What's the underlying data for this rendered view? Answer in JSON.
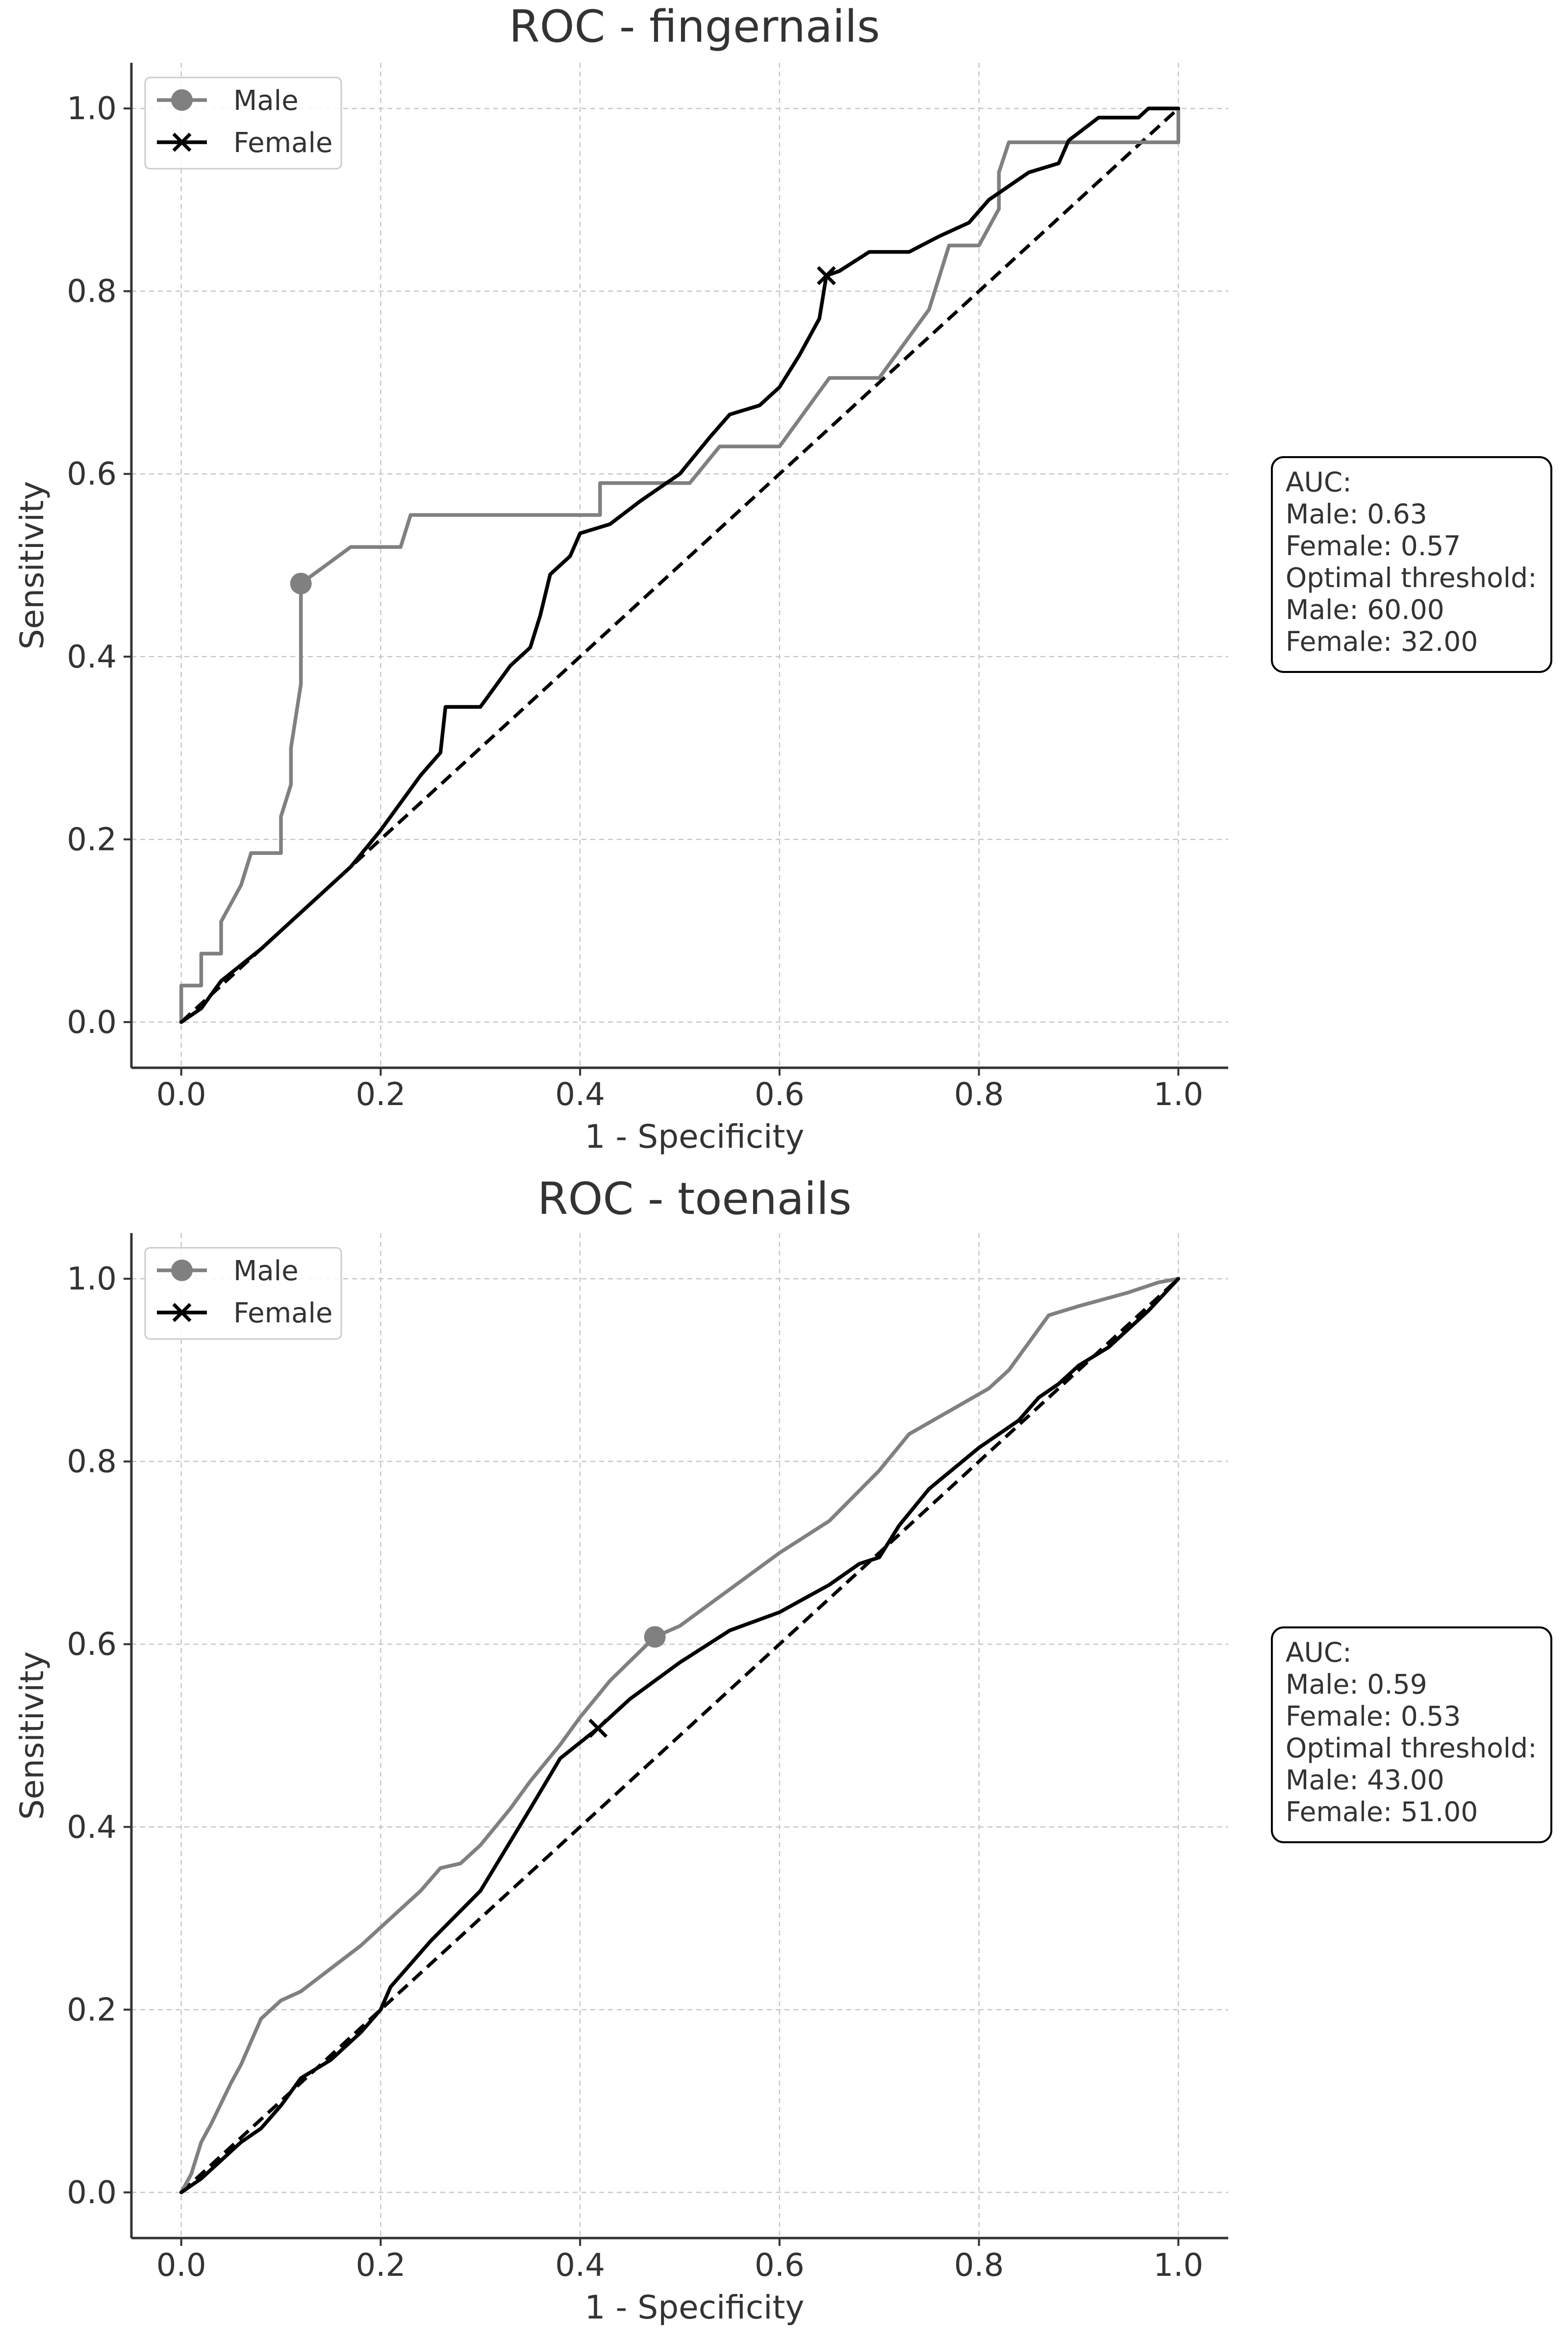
{
  "chart_data": [
    {
      "type": "line",
      "title": "ROC - fingernails",
      "xlabel": "1 - Specificity",
      "ylabel": "Sensitivity",
      "xlim": [
        -0.05,
        1.05
      ],
      "ylim": [
        -0.05,
        1.05
      ],
      "xticks": [
        "0.0",
        "0.2",
        "0.4",
        "0.6",
        "0.8",
        "1.0"
      ],
      "yticks": [
        "0.0",
        "0.2",
        "0.4",
        "0.6",
        "0.8",
        "1.0"
      ],
      "grid": true,
      "legend": {
        "position": "top-left",
        "entries": [
          "Male",
          "Female"
        ]
      },
      "colors": {
        "male": "#808080",
        "female": "#000000",
        "diagonal": "#000000"
      },
      "series": [
        {
          "name": "Male",
          "marker": "circle",
          "optimal_point": [
            0.12,
            0.48
          ],
          "x": [
            0,
            0,
            0.02,
            0.02,
            0.04,
            0.04,
            0.06,
            0.07,
            0.1,
            0.1,
            0.11,
            0.11,
            0.12,
            0.12,
            0.17,
            0.22,
            0.23,
            0.42,
            0.42,
            0.51,
            0.54,
            0.6,
            0.65,
            0.7,
            0.75,
            0.77,
            0.8,
            0.82,
            0.82,
            0.83,
            1.0,
            1.0
          ],
          "y": [
            0,
            0.04,
            0.04,
            0.075,
            0.075,
            0.11,
            0.15,
            0.185,
            0.185,
            0.225,
            0.26,
            0.3,
            0.37,
            0.48,
            0.52,
            0.52,
            0.555,
            0.555,
            0.59,
            0.59,
            0.63,
            0.63,
            0.705,
            0.705,
            0.78,
            0.85,
            0.85,
            0.89,
            0.93,
            0.963,
            0.963,
            1.0
          ]
        },
        {
          "name": "Female",
          "marker": "x",
          "optimal_point": [
            0.647,
            0.817
          ],
          "x": [
            0,
            0.02,
            0.04,
            0.08,
            0.1,
            0.13,
            0.15,
            0.17,
            0.2,
            0.24,
            0.26,
            0.265,
            0.3,
            0.33,
            0.35,
            0.36,
            0.37,
            0.39,
            0.4,
            0.43,
            0.46,
            0.5,
            0.53,
            0.55,
            0.58,
            0.6,
            0.62,
            0.64,
            0.647,
            0.66,
            0.69,
            0.73,
            0.76,
            0.79,
            0.81,
            0.85,
            0.88,
            0.89,
            0.92,
            0.96,
            0.97,
            1.0
          ],
          "y": [
            0,
            0.015,
            0.045,
            0.08,
            0.1,
            0.13,
            0.15,
            0.17,
            0.21,
            0.27,
            0.295,
            0.345,
            0.345,
            0.39,
            0.41,
            0.445,
            0.49,
            0.51,
            0.535,
            0.545,
            0.57,
            0.6,
            0.64,
            0.665,
            0.675,
            0.695,
            0.73,
            0.77,
            0.817,
            0.822,
            0.843,
            0.843,
            0.86,
            0.875,
            0.9,
            0.93,
            0.94,
            0.965,
            0.99,
            0.99,
            1.0,
            1.0
          ]
        }
      ],
      "annotation": {
        "lines": [
          "AUC:",
          "Male: 0.63",
          "Female: 0.57",
          "Optimal threshold:",
          "Male: 60.00",
          "Female: 32.00"
        ]
      }
    },
    {
      "type": "line",
      "title": "ROC - toenails",
      "xlabel": "1 - Specificity",
      "ylabel": "Sensitivity",
      "xlim": [
        -0.05,
        1.05
      ],
      "ylim": [
        -0.05,
        1.05
      ],
      "xticks": [
        "0.0",
        "0.2",
        "0.4",
        "0.6",
        "0.8",
        "1.0"
      ],
      "yticks": [
        "0.0",
        "0.2",
        "0.4",
        "0.6",
        "0.8",
        "1.0"
      ],
      "grid": true,
      "legend": {
        "position": "top-left",
        "entries": [
          "Male",
          "Female"
        ]
      },
      "colors": {
        "male": "#808080",
        "female": "#000000",
        "diagonal": "#000000"
      },
      "series": [
        {
          "name": "Male",
          "marker": "circle",
          "optimal_point": [
            0.475,
            0.608
          ],
          "x": [
            0,
            0.01,
            0.02,
            0.03,
            0.05,
            0.06,
            0.07,
            0.08,
            0.1,
            0.12,
            0.15,
            0.18,
            0.22,
            0.24,
            0.26,
            0.28,
            0.3,
            0.33,
            0.35,
            0.38,
            0.4,
            0.43,
            0.475,
            0.5,
            0.55,
            0.6,
            0.65,
            0.7,
            0.73,
            0.77,
            0.81,
            0.83,
            0.85,
            0.87,
            0.9,
            0.95,
            0.98,
            1.0
          ],
          "y": [
            0,
            0.02,
            0.055,
            0.075,
            0.12,
            0.14,
            0.165,
            0.19,
            0.21,
            0.22,
            0.245,
            0.27,
            0.31,
            0.33,
            0.355,
            0.36,
            0.38,
            0.42,
            0.45,
            0.49,
            0.52,
            0.56,
            0.608,
            0.62,
            0.66,
            0.7,
            0.735,
            0.79,
            0.83,
            0.855,
            0.88,
            0.9,
            0.93,
            0.96,
            0.97,
            0.985,
            0.996,
            1.0
          ]
        },
        {
          "name": "Female",
          "marker": "x",
          "optimal_point": [
            0.418,
            0.508
          ],
          "x": [
            0,
            0.02,
            0.04,
            0.06,
            0.08,
            0.1,
            0.12,
            0.15,
            0.18,
            0.2,
            0.21,
            0.25,
            0.3,
            0.35,
            0.38,
            0.418,
            0.45,
            0.5,
            0.55,
            0.6,
            0.65,
            0.68,
            0.7,
            0.72,
            0.75,
            0.8,
            0.84,
            0.86,
            0.88,
            0.9,
            0.93,
            0.95,
            0.97,
            1.0
          ],
          "y": [
            0,
            0.015,
            0.035,
            0.055,
            0.07,
            0.095,
            0.125,
            0.145,
            0.175,
            0.2,
            0.225,
            0.275,
            0.33,
            0.42,
            0.475,
            0.508,
            0.54,
            0.58,
            0.615,
            0.635,
            0.665,
            0.688,
            0.695,
            0.73,
            0.77,
            0.815,
            0.845,
            0.87,
            0.885,
            0.905,
            0.925,
            0.945,
            0.965,
            1.0
          ]
        }
      ],
      "annotation": {
        "lines": [
          "AUC:",
          "Male: 0.59",
          "Female: 0.53",
          "Optimal threshold:",
          "Male: 43.00",
          "Female: 51.00"
        ]
      }
    }
  ]
}
